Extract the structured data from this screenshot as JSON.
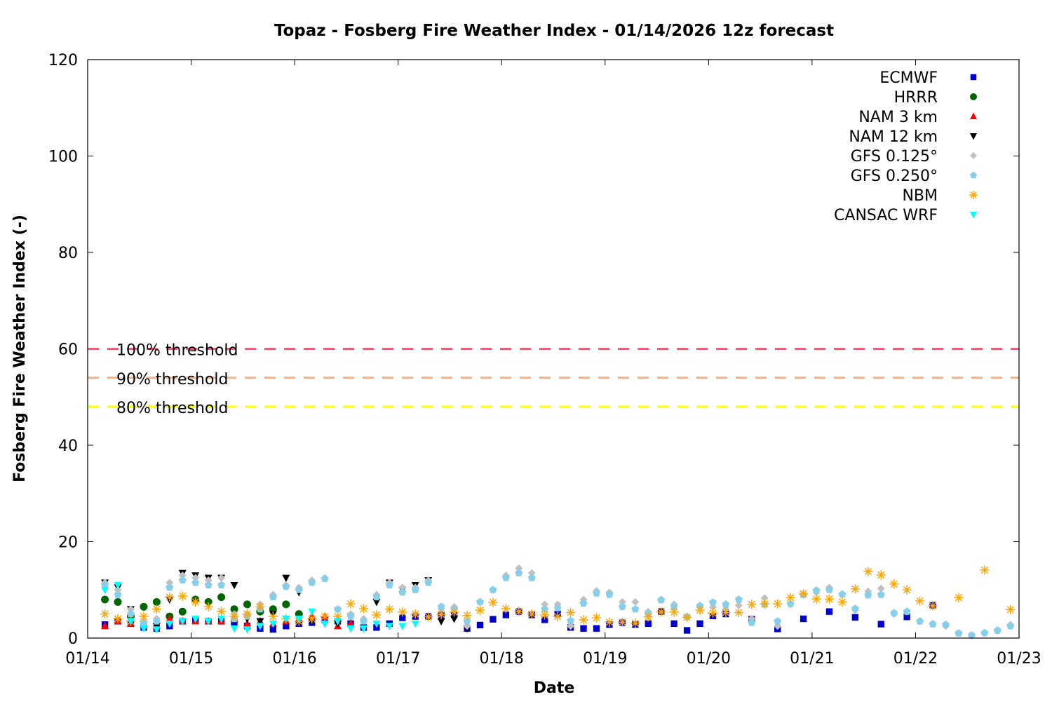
{
  "chart_data": {
    "type": "scatter",
    "title": "Topaz - Fosberg Fire Weather Index - 01/14/2026 12z forecast",
    "xlabel": "Date",
    "ylabel": "Fosberg Fire Weather Index (-)",
    "ylim": [
      0,
      120
    ],
    "yticks": [
      "0",
      "20",
      "40",
      "60",
      "80",
      "100",
      "120"
    ],
    "xlim": [
      "01/14 00:00",
      "01/23 00:00"
    ],
    "xticks": [
      "01/14",
      "01/15",
      "01/16",
      "01/17",
      "01/18",
      "01/19",
      "01/20",
      "01/21",
      "01/22",
      "01/23"
    ],
    "grid": false,
    "legend_position": "top-right",
    "thresholds": [
      {
        "label": "100% threshold",
        "value": 60,
        "color": "#e8607a"
      },
      {
        "label": "90% threshold",
        "value": 54,
        "color": "#f4b183"
      },
      {
        "label": "80% threshold",
        "value": 48,
        "color": "#ffff00"
      }
    ],
    "series": [
      {
        "name": "ECMWF",
        "marker": "square",
        "color": "#0000cc",
        "start": "01/14 04:00",
        "step_hours": 3,
        "values": [
          2.8,
          3.5,
          3,
          2.2,
          2,
          2.5,
          3.5,
          3.8,
          3.5,
          3.5,
          3.2,
          2.5,
          2,
          1.8,
          2.5,
          3,
          3.2,
          3.8,
          3.5,
          3,
          2.2,
          2.2,
          3,
          4.2,
          4.5,
          4.5,
          4.8,
          4.8,
          2.0,
          2.7,
          3.9,
          4.8,
          5.5,
          4.8,
          3.8,
          5,
          2.2,
          2.0,
          2.0,
          2.8,
          3.2,
          2.8,
          3.0,
          5.5,
          3.0,
          1.6,
          3.0,
          4.6,
          5.0,
          null,
          3.9,
          null,
          1.9,
          null,
          4.0,
          null,
          5.5,
          null,
          4.3,
          null,
          2.9,
          null,
          4.4,
          null,
          6.8
        ]
      },
      {
        "name": "HRRR",
        "marker": "circle",
        "color": "#006400",
        "start": "01/14 04:00",
        "step_hours": 3,
        "values": [
          8,
          7.5,
          4.5,
          6.5,
          7.5,
          4.5,
          5.5,
          8,
          7.5,
          8.5,
          6,
          7,
          5.5,
          6,
          7,
          5
        ]
      },
      {
        "name": "NAM 3 km",
        "marker": "triangle-up",
        "color": "#ff0000",
        "start": "01/14 04:00",
        "step_hours": 3,
        "values": [
          2.5,
          3.5,
          3,
          3,
          2.5,
          4,
          3.5,
          3.5,
          3.5,
          3.5,
          4,
          3,
          3.5,
          3,
          3.5,
          4,
          4.5,
          4.5,
          2.5,
          3
        ]
      },
      {
        "name": "NAM 12 km",
        "marker": "triangle-down",
        "color": "#000000",
        "start": "01/14 04:00",
        "step_hours": 3,
        "values": [
          11.5,
          10.5,
          6,
          3,
          2.5,
          8,
          13.5,
          13,
          12.5,
          12.5,
          11,
          4,
          3.5,
          5,
          12.5,
          9.5,
          3.5,
          3,
          3,
          4.5,
          2,
          7.5,
          11.5,
          10,
          11,
          12,
          3.5,
          4,
          2
        ]
      },
      {
        "name": "GFS 0.125°",
        "marker": "diamond",
        "color": "#c0c0c0",
        "start": "01/14 04:00",
        "step_hours": 3,
        "values": [
          11.5,
          10,
          6,
          3.5,
          4,
          11.5,
          13,
          12.5,
          12,
          12.5,
          5,
          5,
          7,
          9,
          11,
          10.5,
          12,
          12.5,
          6,
          5,
          4,
          9,
          11.5,
          10.5,
          10.5,
          12,
          6,
          6.5,
          2.5,
          7.5,
          10,
          13,
          14.5,
          13.5,
          7,
          7,
          2.5,
          8,
          9.8,
          9.5,
          7.5,
          7.5,
          5.5,
          8,
          7,
          4.5,
          6.5,
          6.4,
          6,
          6.8,
          4,
          8.3,
          2.5,
          7,
          9,
          9.5,
          10.5,
          9,
          5.8,
          9.7,
          10.3,
          5,
          5.5,
          3.5,
          3,
          2.5,
          1,
          0.5,
          1,
          1.5,
          2.8
        ]
      },
      {
        "name": "GFS 0.250°",
        "marker": "pentagon",
        "color": "#87ceeb",
        "start": "01/14 04:00",
        "step_hours": 3,
        "values": [
          11,
          9,
          5,
          3,
          3.5,
          10.5,
          12,
          11.5,
          11,
          11,
          4,
          4.5,
          6,
          8.5,
          10.7,
          10,
          11.5,
          12.3,
          6,
          4.5,
          3.5,
          8.5,
          11,
          9.5,
          10,
          11.5,
          6.5,
          6,
          3.5,
          7.5,
          10,
          12.5,
          13.5,
          12.5,
          6,
          6.2,
          3.6,
          7.2,
          9.3,
          9,
          6.5,
          6.0,
          5.1,
          7.9,
          6.5,
          4.4,
          6.7,
          7.4,
          7.0,
          8.0,
          3.2,
          7.0,
          3.5,
          7.1,
          9.0,
          9.9,
          10.0,
          9.1,
          6.1,
          8.9,
          9.0,
          5.2,
          5.5,
          3.5,
          2.9,
          2.8,
          1.0,
          0.6,
          1.1,
          1.6,
          2.5
        ]
      },
      {
        "name": "NBM",
        "marker": "asterisk",
        "color": "#ffa500",
        "start": "01/14 04:00",
        "step_hours": 3,
        "values": [
          5,
          4,
          3.5,
          4.5,
          6,
          8.5,
          8.7,
          7.5,
          6.5,
          5.5,
          4.5,
          5,
          6.5,
          4.5,
          4,
          3.5,
          4,
          4.5,
          4.5,
          7.1,
          6.1,
          4.8,
          6.0,
          5.4,
          5.0,
          4.4,
          4.9,
          5.4,
          4.7,
          5.8,
          7.4,
          6.1,
          5.5,
          5.0,
          4.8,
          4.5,
          5.3,
          3.8,
          4.2,
          3.3,
          3.3,
          3.1,
          4.4,
          5.4,
          5.4,
          4.3,
          5.8,
          5.2,
          5.3,
          5.3,
          7.0,
          7.1,
          7.1,
          8.4,
          9.2,
          8.1,
          8.1,
          7.5,
          10.2,
          13.8,
          13.1,
          11.2,
          10.0,
          7.7,
          6.7,
          null,
          8.4,
          null,
          14.1,
          null,
          5.9
        ]
      },
      {
        "name": "CANSAC WRF",
        "marker": "triangle-down",
        "color": "#00ffff",
        "start": "01/14 04:00",
        "step_hours": 3,
        "values": [
          10,
          11,
          3.5,
          2,
          1.8,
          3,
          3.5,
          4,
          3.5,
          4,
          2,
          1.8,
          2.5,
          3,
          4,
          4,
          5.5,
          3,
          3.5,
          2,
          2,
          3,
          2.5,
          2.5,
          3
        ]
      }
    ]
  }
}
